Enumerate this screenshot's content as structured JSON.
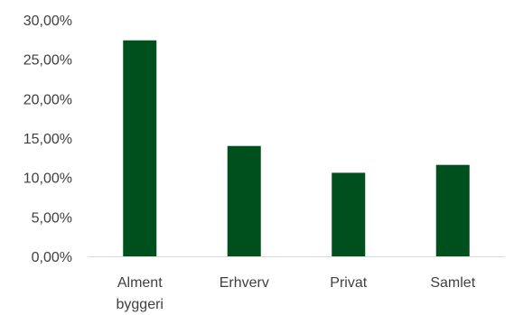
{
  "chart_data": {
    "type": "bar",
    "categories": [
      [
        "Alment",
        "byggeri"
      ],
      [
        "Erhverv"
      ],
      [
        "Privat"
      ],
      [
        "Samlet"
      ]
    ],
    "values": [
      27.4,
      14.0,
      10.6,
      11.6
    ],
    "y_ticks": [
      "0,00%",
      "5,00%",
      "10,00%",
      "15,00%",
      "20,00%",
      "25,00%",
      "30,00%"
    ],
    "ylim": [
      0,
      30
    ],
    "title": "",
    "xlabel": "",
    "ylabel": "",
    "grid": false,
    "legend": "none",
    "bar_color": "#00501E",
    "axis_color": "#D9D9D9"
  }
}
